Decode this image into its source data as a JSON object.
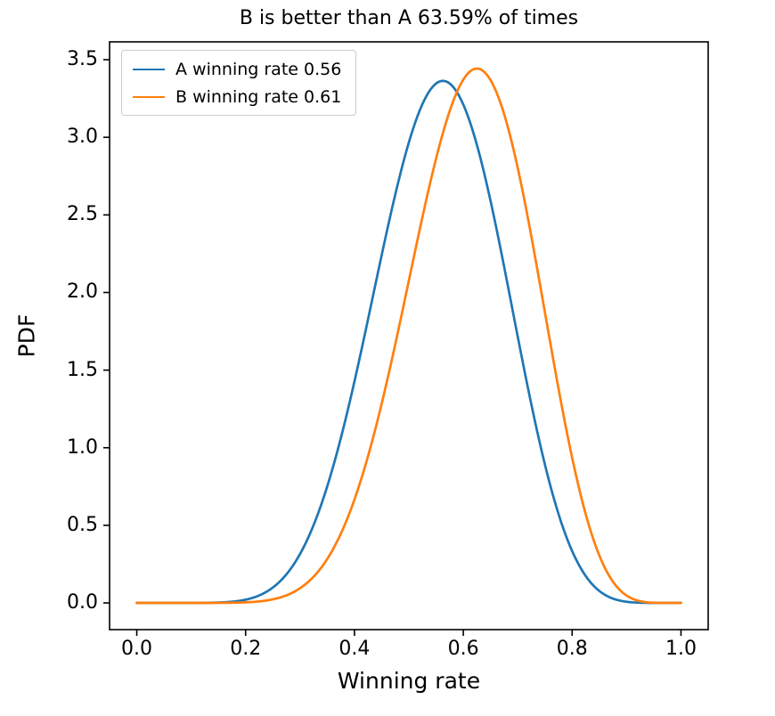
{
  "figure": {
    "background": "#ffffff"
  },
  "chart_data": {
    "type": "line",
    "title": "B is better than A 63.59% of times",
    "xlabel": "Winning rate",
    "ylabel": "PDF",
    "xlim": [
      -0.05,
      1.05
    ],
    "ylim": [
      -0.172,
      3.615
    ],
    "grid": false,
    "xticks": [
      0.0,
      0.2,
      0.4,
      0.6,
      0.8,
      1.0
    ],
    "xtick_labels": [
      "0.0",
      "0.2",
      "0.4",
      "0.6",
      "0.8",
      "1.0"
    ],
    "yticks": [
      0.0,
      0.5,
      1.0,
      1.5,
      2.0,
      2.5,
      3.0,
      3.5
    ],
    "ytick_labels": [
      "0.0",
      "0.5",
      "1.0",
      "1.5",
      "2.0",
      "2.5",
      "3.0",
      "3.5"
    ],
    "legend": {
      "position": "upper-left",
      "border_color": "#cccccc",
      "entries": [
        "A winning rate 0.56",
        "B winning rate 0.61"
      ]
    },
    "x_sample": [
      0,
      0.05,
      0.1,
      0.15,
      0.2,
      0.25,
      0.3,
      0.35,
      0.4,
      0.45,
      0.5,
      0.55,
      0.6,
      0.65,
      0.7,
      0.75,
      0.8,
      0.85,
      0.9,
      0.95,
      1.0
    ],
    "series": [
      {
        "name": "A winning rate 0.56",
        "color": "#1f77b4",
        "line_width": 2.7,
        "distribution": "beta",
        "alpha": 10,
        "beta": 8,
        "peak": {
          "x": 0.5625,
          "y": 3.36
        },
        "values": [
          0,
          0.0,
          0.0,
          0.002,
          0.021,
          0.099,
          0.315,
          0.751,
          1.427,
          2.24,
          2.968,
          3.347,
          3.211,
          2.592,
          1.716,
          0.891,
          0.334,
          0.077,
          0.008,
          0.0,
          0
        ]
      },
      {
        "name": "B winning rate 0.61",
        "color": "#ff7f0e",
        "line_width": 2.7,
        "distribution": "beta",
        "alpha": 11,
        "beta": 7,
        "peak": {
          "x": 0.625,
          "y": 3.44
        },
        "values": [
          0,
          0.0,
          0.0,
          0.0,
          0.004,
          0.023,
          0.095,
          0.283,
          0.666,
          1.283,
          2.077,
          2.863,
          3.372,
          3.369,
          2.803,
          1.872,
          0.936,
          0.305,
          0.047,
          0.001,
          0
        ]
      }
    ]
  }
}
